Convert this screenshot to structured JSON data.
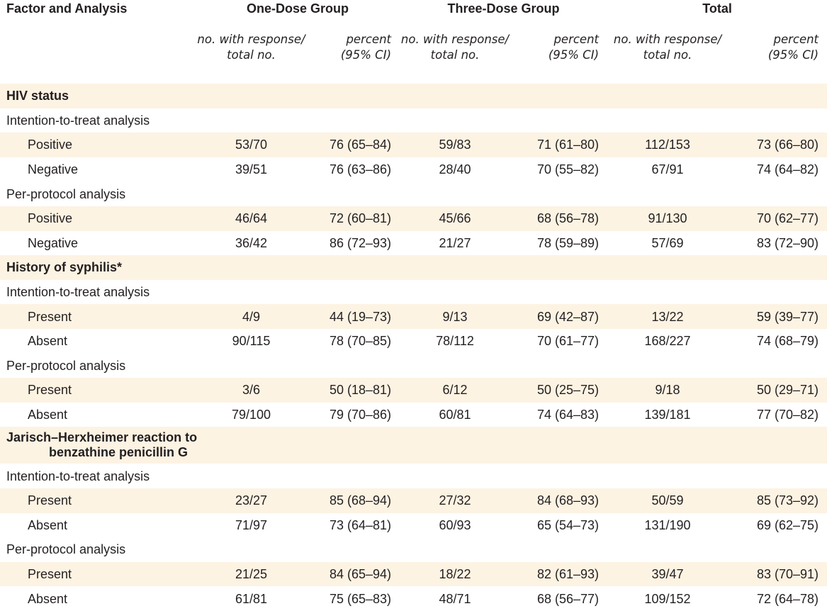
{
  "header": {
    "factor": "Factor and Analysis",
    "groups": [
      "One-Dose Group",
      "Three-Dose Group",
      "Total"
    ],
    "n_label": [
      "no. with response/",
      "total no."
    ],
    "p_label": [
      "percent",
      "(95% CI)"
    ]
  },
  "sections": [
    {
      "title_lines": [
        "HIV status"
      ],
      "analyses": [
        {
          "name": "Intention-to-treat analysis",
          "rows": [
            {
              "level": "Positive",
              "v": [
                "53/70",
                "76 (65–84)",
                "59/83",
                "71 (61–80)",
                "112/153",
                "73 (66–80)"
              ]
            },
            {
              "level": "Negative",
              "v": [
                "39/51",
                "76 (63–86)",
                "28/40",
                "70 (55–82)",
                "67/91",
                "74 (64–82)"
              ]
            }
          ]
        },
        {
          "name": "Per-protocol analysis",
          "rows": [
            {
              "level": "Positive",
              "v": [
                "46/64",
                "72 (60–81)",
                "45/66",
                "68 (56–78)",
                "91/130",
                "70 (62–77)"
              ]
            },
            {
              "level": "Negative",
              "v": [
                "36/42",
                "86 (72–93)",
                "21/27",
                "78 (59–89)",
                "57/69",
                "83 (72–90)"
              ]
            }
          ]
        }
      ]
    },
    {
      "title_lines": [
        "History of syphilis*"
      ],
      "analyses": [
        {
          "name": "Intention-to-treat analysis",
          "rows": [
            {
              "level": "Present",
              "v": [
                "4/9",
                "44 (19–73)",
                "9/13",
                "69 (42–87)",
                "13/22",
                "59 (39–77)"
              ]
            },
            {
              "level": "Absent",
              "v": [
                "90/115",
                "78 (70–85)",
                "78/112",
                "70 (61–77)",
                "168/227",
                "74 (68–79)"
              ]
            }
          ]
        },
        {
          "name": "Per-protocol analysis",
          "rows": [
            {
              "level": "Present",
              "v": [
                "3/6",
                "50 (18–81)",
                "6/12",
                "50 (25–75)",
                "9/18",
                "50 (29–71)"
              ]
            },
            {
              "level": "Absent",
              "v": [
                "79/100",
                "79 (70–86)",
                "60/81",
                "74 (64–83)",
                "139/181",
                "77 (70–82)"
              ]
            }
          ]
        }
      ]
    },
    {
      "title_lines": [
        "Jarisch–Herxheimer reaction to",
        "benzathine penicillin G"
      ],
      "analyses": [
        {
          "name": "Intention-to-treat analysis",
          "rows": [
            {
              "level": "Present",
              "v": [
                "23/27",
                "85 (68–94)",
                "27/32",
                "84 (68–93)",
                "50/59",
                "85 (73–92)"
              ]
            },
            {
              "level": "Absent",
              "v": [
                "71/97",
                "73 (64–81)",
                "60/93",
                "65 (54–73)",
                "131/190",
                "69 (62–75)"
              ]
            }
          ]
        },
        {
          "name": "Per-protocol analysis",
          "rows": [
            {
              "level": "Present",
              "v": [
                "21/25",
                "84 (65–94)",
                "18/22",
                "82 (61–93)",
                "39/47",
                "83 (70–91)"
              ]
            },
            {
              "level": "Absent",
              "v": [
                "61/81",
                "75 (65–83)",
                "48/71",
                "68 (56–77)",
                "109/152",
                "72 (64–78)"
              ]
            }
          ]
        }
      ]
    }
  ]
}
